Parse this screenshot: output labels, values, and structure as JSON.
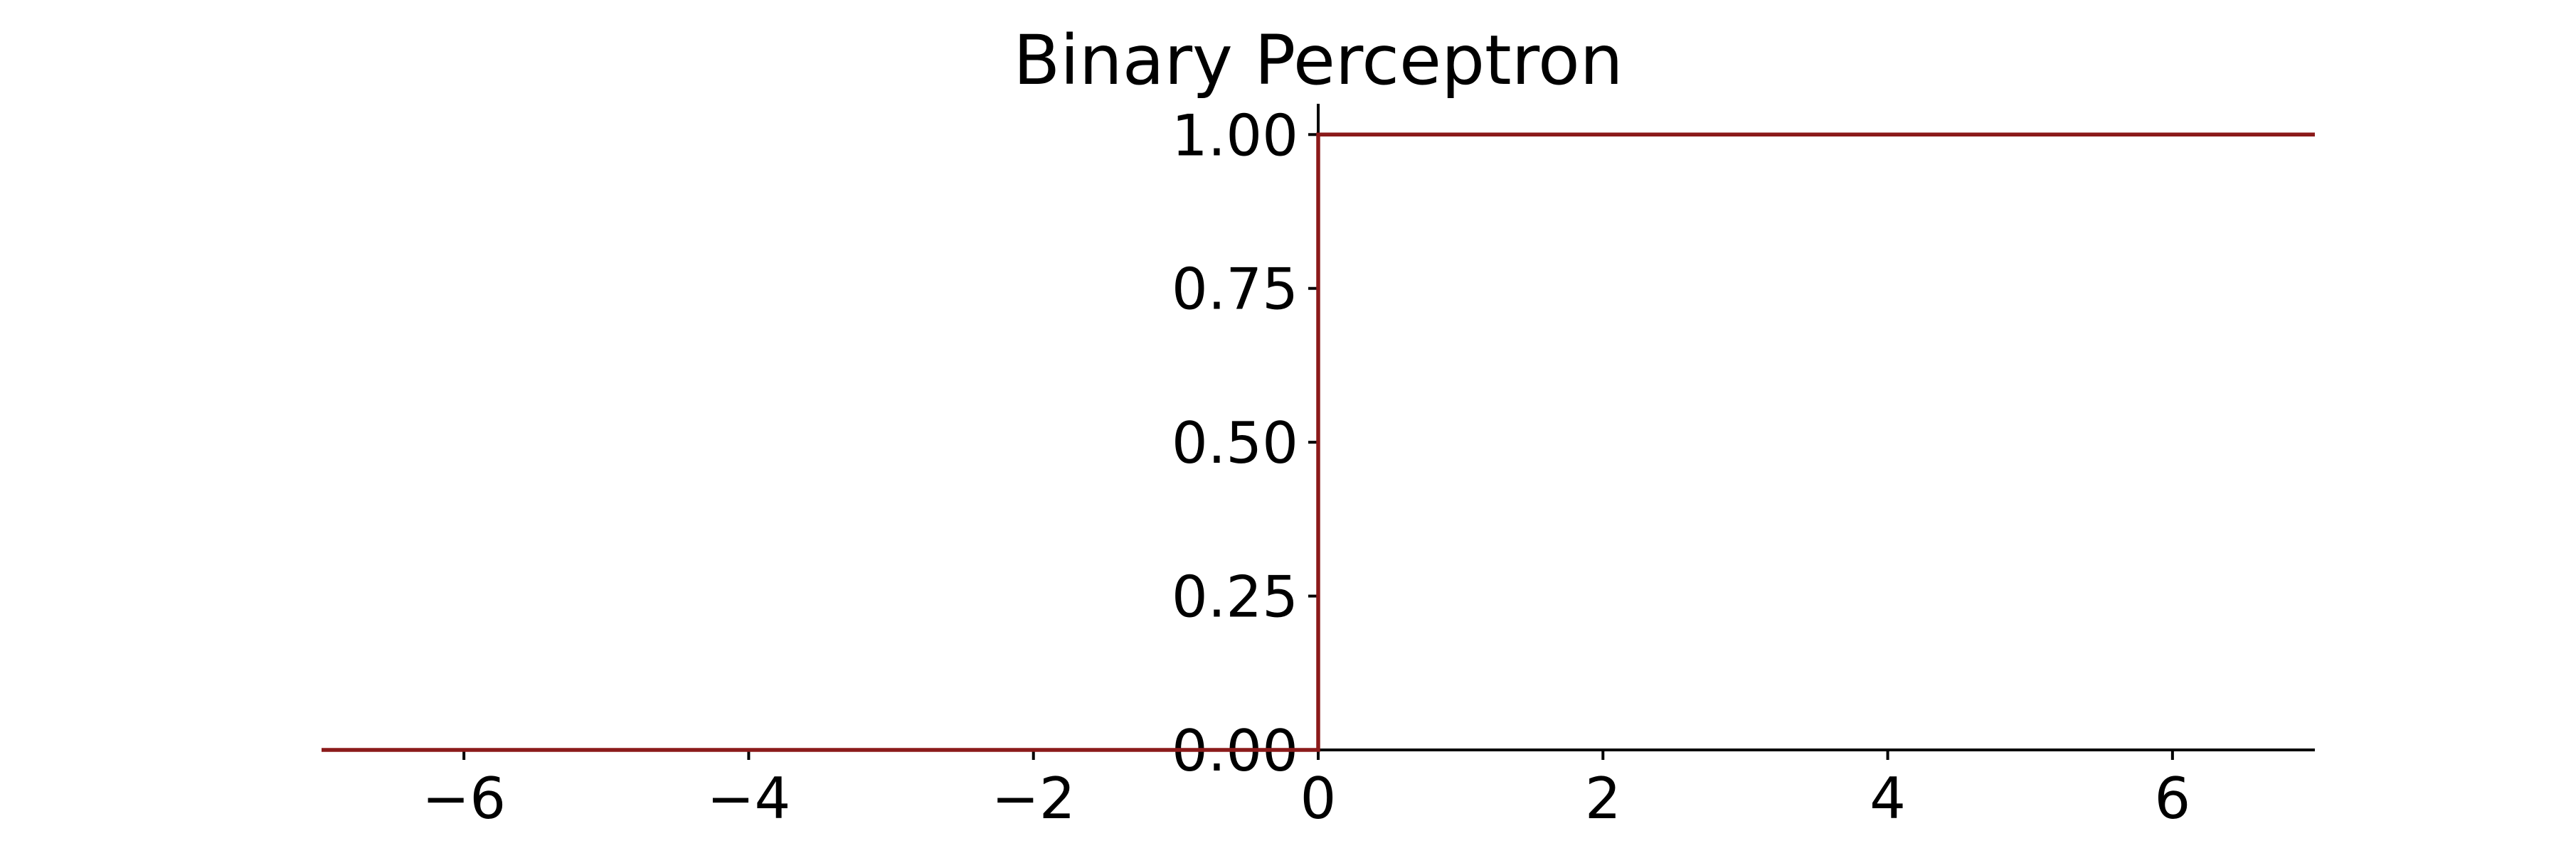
{
  "chart_data": {
    "type": "line",
    "title": "Binary Perceptron",
    "xlabel": "",
    "ylabel": "",
    "xlim": [
      -7,
      7
    ],
    "ylim": [
      0,
      1.05
    ],
    "x_ticks": [
      -6,
      -4,
      -2,
      0,
      2,
      4,
      6
    ],
    "x_tick_labels": [
      "−6",
      "−4",
      "−2",
      "0",
      "2",
      "4",
      "6"
    ],
    "y_ticks": [
      0,
      0.25,
      0.5,
      0.75,
      1.0
    ],
    "y_tick_labels": [
      "0.00",
      "0.25",
      "0.50",
      "0.75",
      "1.00"
    ],
    "grid": false,
    "legend": "none",
    "spines": "centered (x-axis at y=0, y-axis at x=0), top and right hidden",
    "series": [
      {
        "color": "#8b1a1a",
        "x": [
          -7,
          0,
          0,
          7
        ],
        "y": [
          0,
          0,
          1,
          1
        ]
      }
    ]
  }
}
